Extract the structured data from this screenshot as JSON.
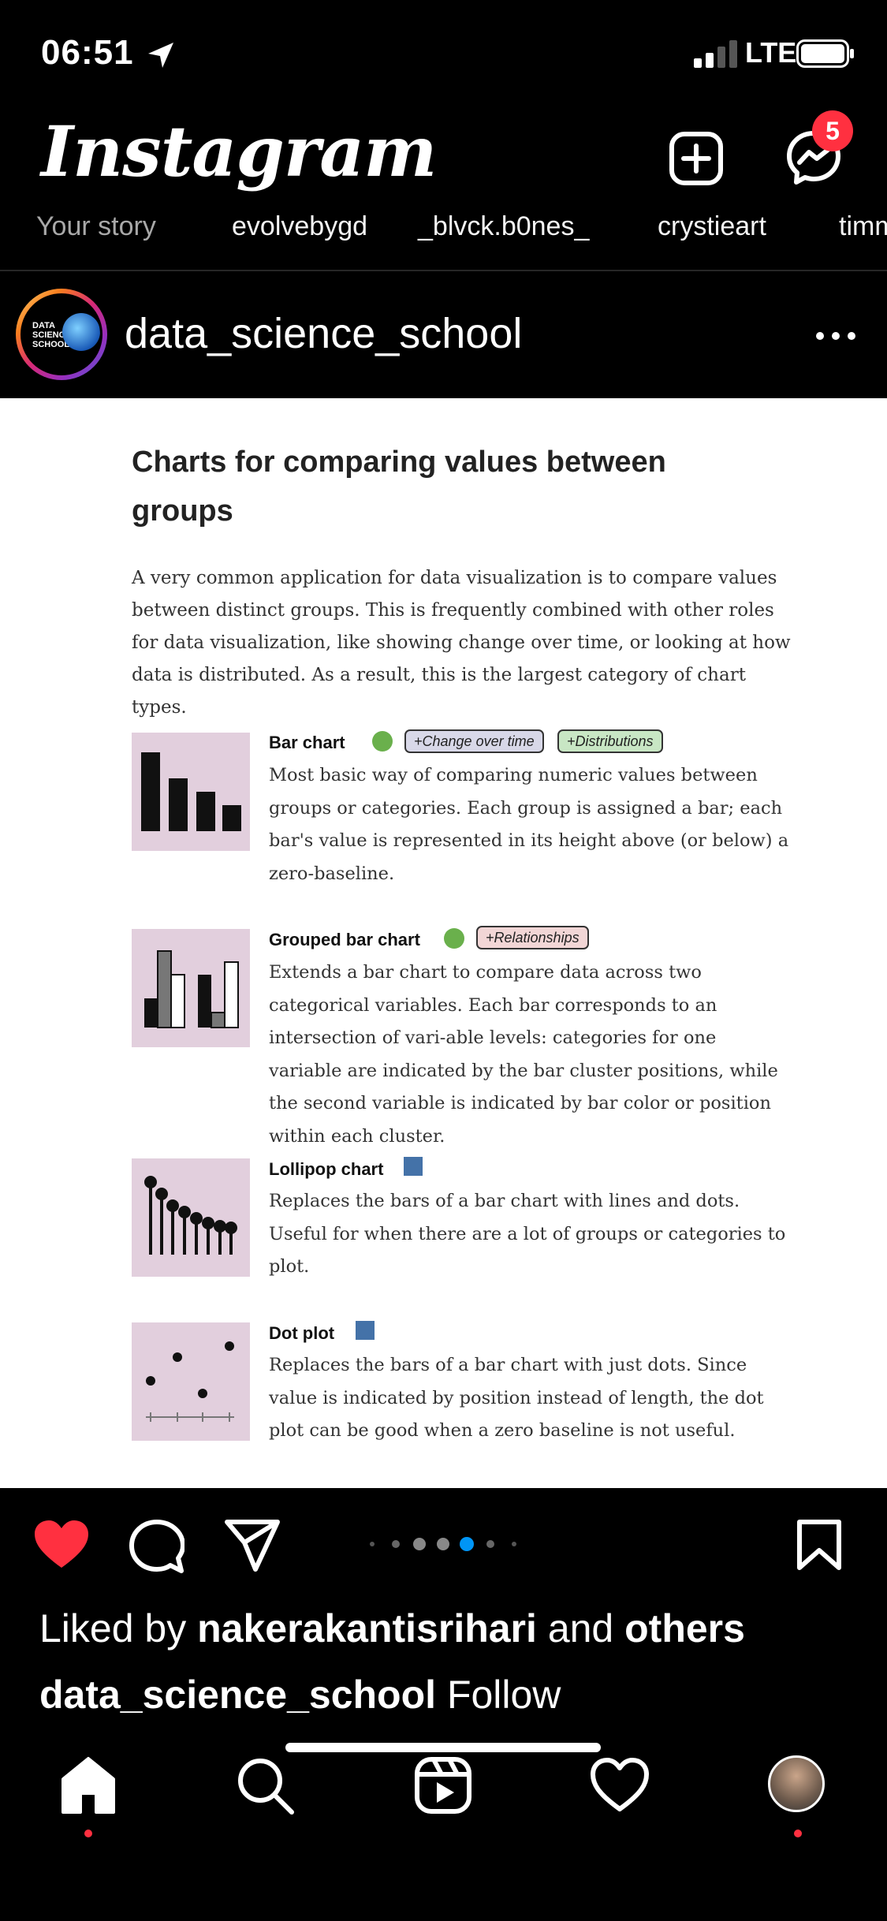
{
  "status_bar": {
    "time": "06:51",
    "network": "LTE"
  },
  "header": {
    "logo": "Instagram",
    "messages_badge": "5"
  },
  "stories": [
    "Your story",
    "evolvebygd",
    "_blvck.b0nes_",
    "crystieart",
    "timm"
  ],
  "post": {
    "username": "data_science_school",
    "avatar_text": "DATA SCIENCE SCHOOL",
    "image": {
      "title": "Charts for comparing values between groups",
      "intro": "A very common application for data visualization is to compare values between distinct groups. This is frequently combined with other roles for data visualization, like showing change over time, or looking at how data is distributed. As a result, this is the largest category of chart types.",
      "entries": [
        {
          "title": "Bar chart",
          "tags": [
            "+Change over time",
            "+Distributions"
          ],
          "description": "Most basic way of comparing numeric values between groups or categories. Each group is assigned a bar; each bar's value is represented in its height above (or below) a zero-baseline."
        },
        {
          "title": "Grouped bar chart",
          "tags": [
            "+Relationships"
          ],
          "description": "Extends a bar chart to compare data across two categorical variables.  Each bar corresponds to an intersection of vari-able levels: categories for one variable are indicated by the bar cluster positions, while the second variable is indicated by bar color or position within each cluster."
        },
        {
          "title": "Lollipop chart",
          "tags": [],
          "description": "Replaces the bars of a bar chart with lines and dots. Useful for when there are a lot of groups or categories to plot."
        },
        {
          "title": "Dot plot",
          "tags": [],
          "description": "Replaces the bars of a bar chart with just dots. Since value is indicated by position instead of length, the dot plot can be good when a zero baseline is not useful."
        }
      ]
    },
    "liked_by_prefix": "Liked by ",
    "liked_by_user": "nakerakantisrihari",
    "liked_by_mid": " and ",
    "liked_by_others": "others",
    "caption_user": "data_science_school",
    "follow_label": "Follow"
  },
  "colors": {
    "badge": "#ff3040",
    "like": "#ff3040",
    "active_dot": "#0095f6"
  }
}
